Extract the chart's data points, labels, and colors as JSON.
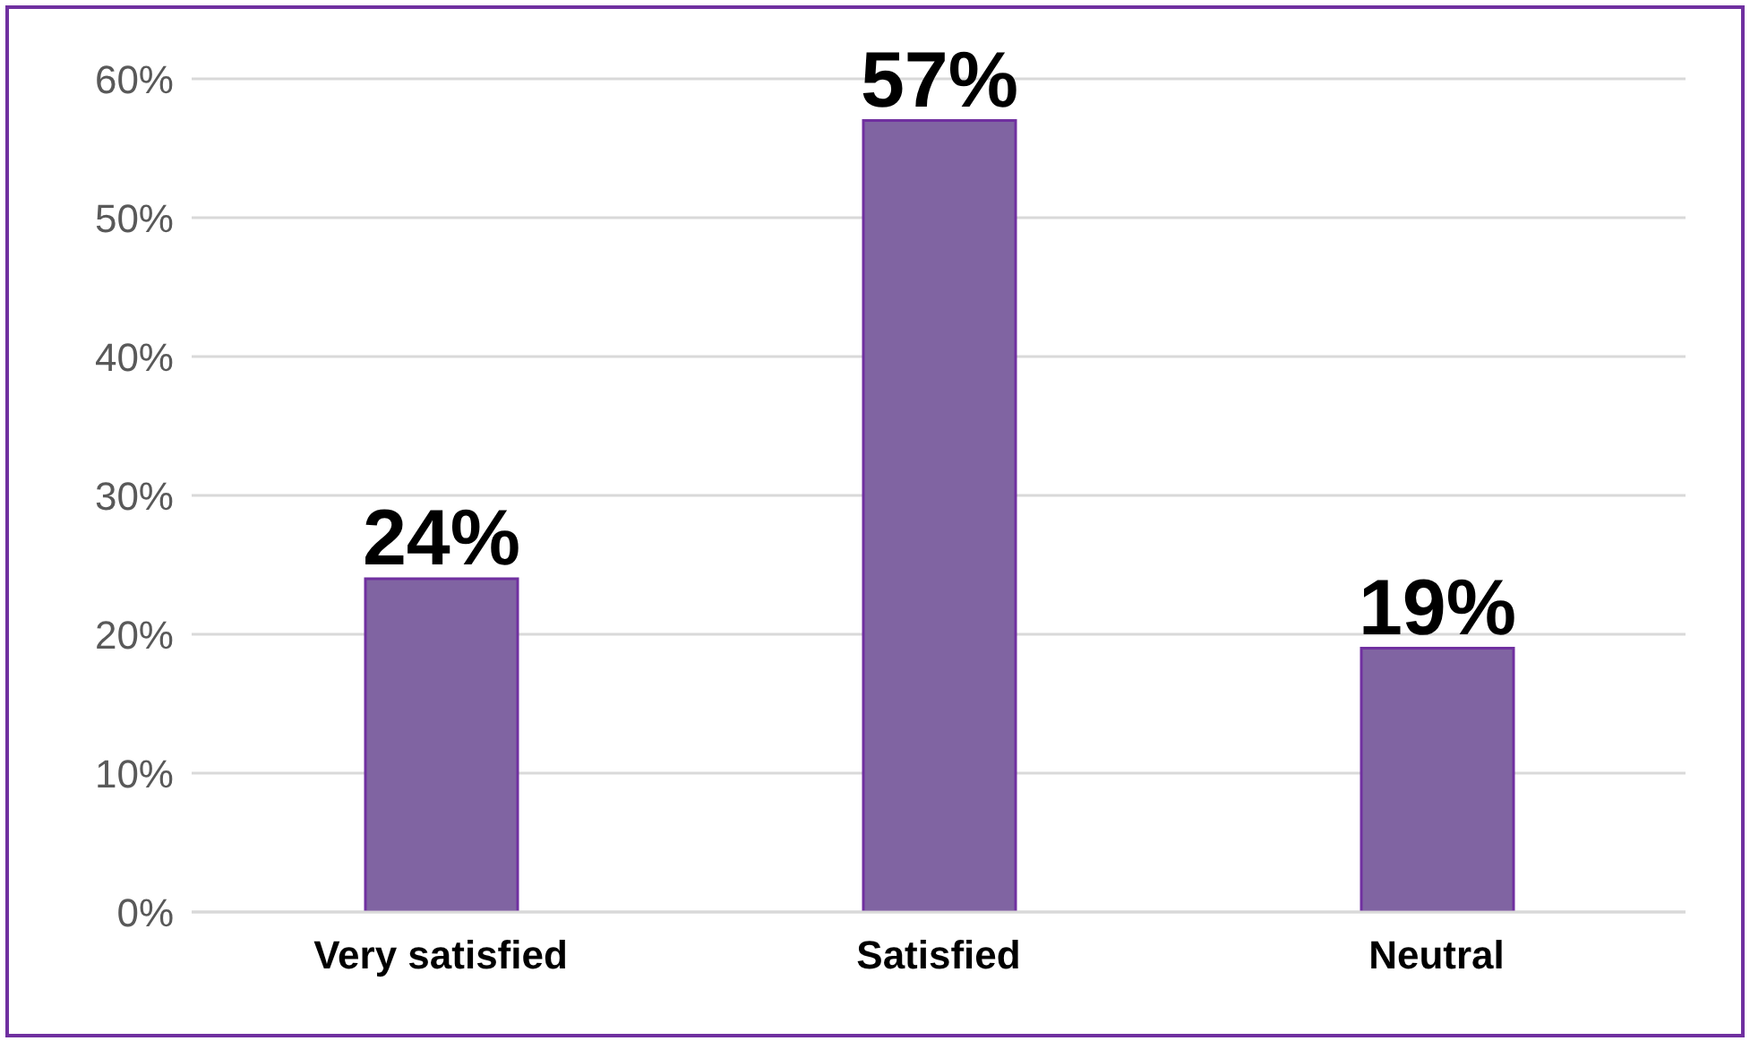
{
  "chart_data": {
    "type": "bar",
    "categories": [
      "Very satisfied",
      "Satisfied",
      "Neutral"
    ],
    "values": [
      24,
      57,
      19
    ],
    "color": "#8064a2",
    "value_labels": [
      "24%",
      "57%",
      "19%"
    ],
    "ylim": [
      0,
      60
    ],
    "yticks": [
      {
        "value": 0,
        "label": "0%"
      },
      {
        "value": 10,
        "label": "10%"
      },
      {
        "value": 20,
        "label": "20%"
      },
      {
        "value": 30,
        "label": "30%"
      },
      {
        "value": 40,
        "label": "40%"
      },
      {
        "value": 50,
        "label": "50%"
      },
      {
        "value": 60,
        "label": "60%"
      }
    ],
    "grid": "y",
    "legend": false
  }
}
